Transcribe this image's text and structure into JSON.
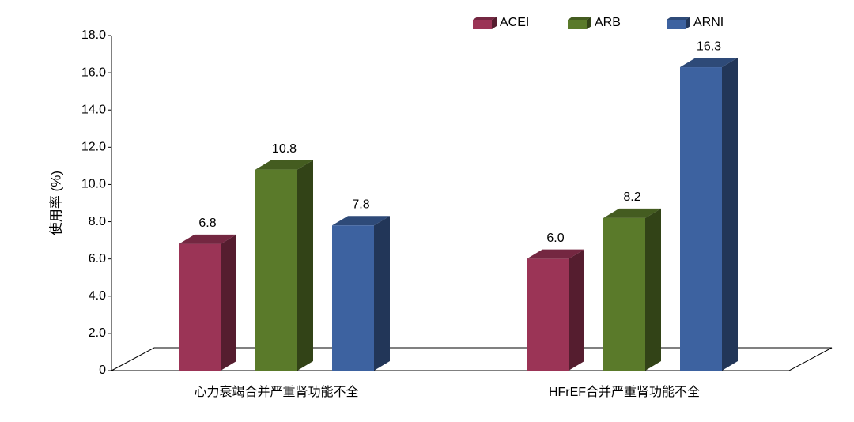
{
  "chart_data": {
    "type": "bar3d",
    "y_label": "使用率 (%)",
    "categories": [
      "心力衰竭合并严重肾功能不全",
      "HFrEF合并严重肾功能不全"
    ],
    "series": [
      {
        "name": "ACEI",
        "color": "#9b3456",
        "values": [
          6.8,
          6.0
        ],
        "value_labels": [
          "6.8",
          "6.0"
        ]
      },
      {
        "name": "ARB",
        "color": "#5a7a2a",
        "values": [
          10.8,
          8.2
        ],
        "value_labels": [
          "10.8",
          "8.2"
        ]
      },
      {
        "name": "ARNI",
        "color": "#3d62a0",
        "values": [
          7.8,
          16.3
        ],
        "value_labels": [
          "7.8",
          "16.3"
        ]
      }
    ],
    "ylim": [
      0,
      18
    ],
    "yticks": [
      0,
      {
        "value": 2,
        "label": "2.0"
      },
      {
        "value": 4,
        "label": "4.0"
      },
      {
        "value": 6,
        "label": "6.0"
      },
      {
        "value": 8,
        "label": "8.0"
      },
      {
        "value": 10,
        "label": "10.0"
      },
      {
        "value": 12,
        "label": "12.0"
      },
      {
        "value": 14,
        "label": "14.0"
      },
      {
        "value": 16,
        "label": "16.0"
      },
      {
        "value": 18,
        "label": "18.0"
      }
    ],
    "legend": "top-right"
  }
}
